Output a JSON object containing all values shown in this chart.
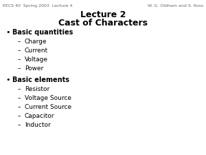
{
  "title_line1": "Lecture 2",
  "title_line2": "Cast of Characters",
  "header_left": "EECS 40  Spring 2003  Lecture 4",
  "header_right": "W. G. Oldham and S. Ross",
  "bullet1": "Basic quantities",
  "sub1": [
    "Charge",
    "Current",
    "Voltage",
    "Power"
  ],
  "bullet2": "Basic elements",
  "sub2": [
    "Resistor",
    "Voltage Source",
    "Current Source",
    "Capacitor",
    "Inductor"
  ],
  "bg_color": "#ffffff",
  "title_color": "#000000",
  "text_color": "#000000",
  "header_color": "#666666",
  "title_fontsize": 9,
  "header_fontsize": 4.5,
  "bullet_fontsize": 7,
  "sub_fontsize": 6.5
}
